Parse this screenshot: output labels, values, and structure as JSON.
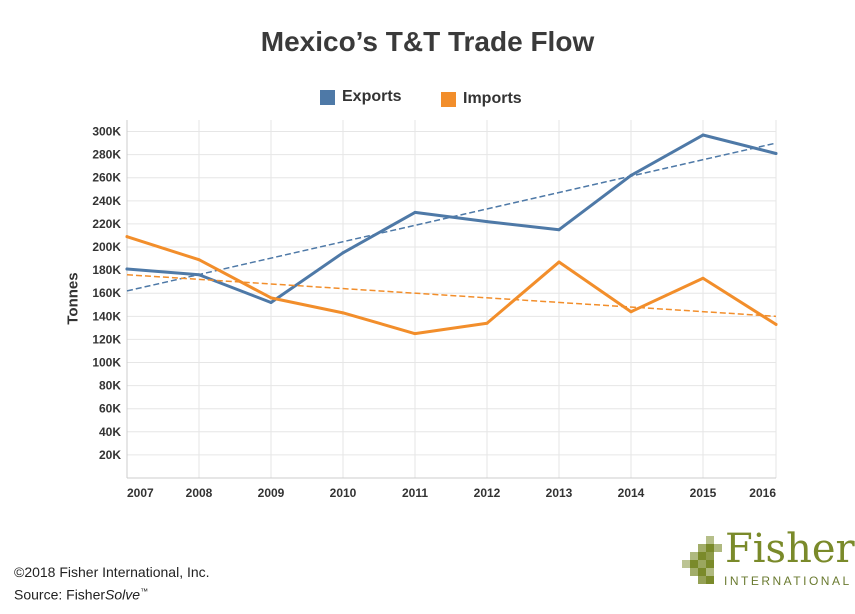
{
  "title": "Mexico’s T&T Trade Flow",
  "legend": {
    "exports": "Exports",
    "imports": "Imports"
  },
  "colors": {
    "exports": "#4e79a7",
    "imports": "#f28e2b",
    "grid": "#e6e6e6",
    "logo_green": "#7a8a2a"
  },
  "footer": {
    "copyright": "©2018 Fisher International, Inc.",
    "source_prefix": "Source: Fisher",
    "source_italic": "Solve",
    "source_tm": "™"
  },
  "logo": {
    "name": "Fisher",
    "sub": "INTERNATIONAL"
  },
  "chart_data": {
    "type": "line",
    "title": "Mexico’s T&T Trade Flow",
    "ylabel": "Tonnes",
    "xlabel": "",
    "categories": [
      "2007",
      "2008",
      "2009",
      "2010",
      "2011",
      "2012",
      "2013",
      "2014",
      "2015",
      "2016"
    ],
    "ylim": [
      0,
      310000
    ],
    "yticks": [
      20000,
      40000,
      60000,
      80000,
      100000,
      120000,
      140000,
      160000,
      180000,
      200000,
      220000,
      240000,
      260000,
      280000,
      300000
    ],
    "ytick_labels": [
      "20K",
      "40K",
      "60K",
      "80K",
      "100K",
      "120K",
      "140K",
      "160K",
      "180K",
      "200K",
      "220K",
      "240K",
      "260K",
      "280K",
      "300K"
    ],
    "grid": true,
    "legend_position": "top-center",
    "series": [
      {
        "name": "Exports",
        "values": [
          181000,
          176000,
          152000,
          195000,
          230000,
          222000,
          215000,
          262000,
          297000,
          281000
        ],
        "trend": [
          162000,
          290000
        ]
      },
      {
        "name": "Imports",
        "values": [
          209000,
          189000,
          156000,
          143000,
          125000,
          134000,
          187000,
          144000,
          173000,
          133000
        ],
        "trend": [
          176000,
          140000
        ]
      }
    ]
  }
}
